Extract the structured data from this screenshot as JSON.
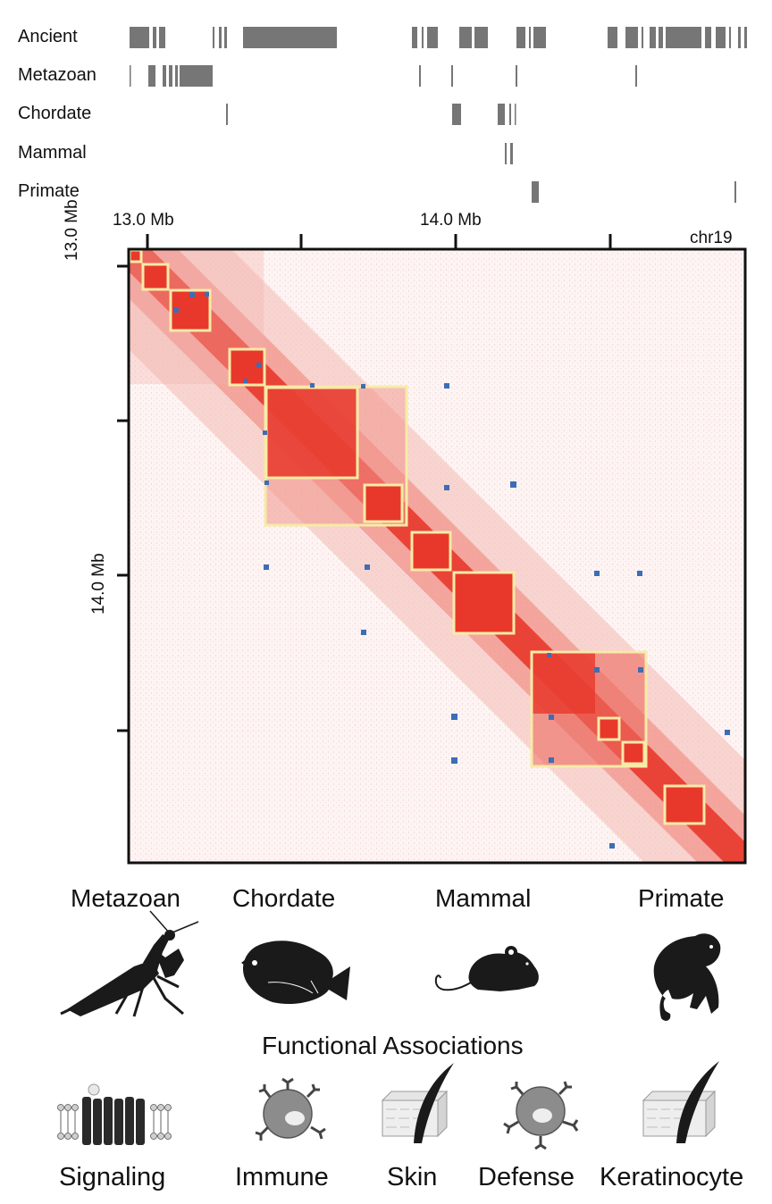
{
  "tracks": {
    "labels": [
      "Ancient",
      "Metazoan",
      "Chordate",
      "Mammal",
      "Primate"
    ]
  },
  "axis": {
    "top_ticks": [
      "13.0 Mb",
      "14.0 Mb"
    ],
    "left_ticks": [
      "13.0 Mb",
      "14.0 Mb"
    ],
    "chromosome": "chr19"
  },
  "colors": {
    "hic_red": "#e8382c",
    "tad_outline": "#f7eba6",
    "loop_dot": "#3d6db5",
    "gene_block": "#767676"
  },
  "lineages": {
    "labels": [
      "Metazoan",
      "Chordate",
      "Mammal",
      "Primate"
    ],
    "icons": [
      "mantis-icon",
      "fish-icon",
      "mouse-icon",
      "monkey-icon"
    ]
  },
  "functional": {
    "title": "Functional Associations",
    "labels": [
      "Signaling",
      "Immune",
      "Skin",
      "Defense",
      "Keratinocyte"
    ],
    "icons": [
      "membrane-receptor-icon",
      "immune-cell-icon",
      "skin-hair-icon",
      "defense-cell-icon",
      "keratinocyte-skin-icon"
    ]
  }
}
